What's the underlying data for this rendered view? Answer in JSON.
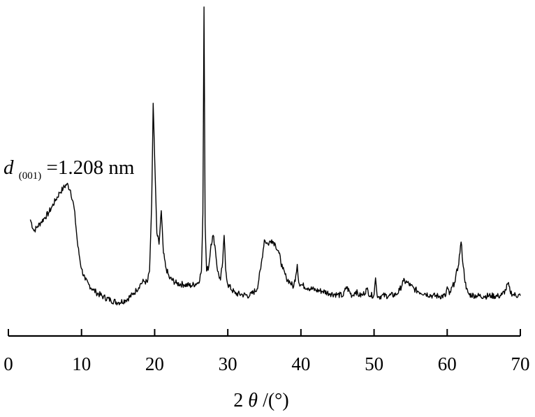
{
  "chart_data": {
    "type": "line",
    "title": "",
    "xlabel": {
      "prefix": "2",
      "symbol": "θ",
      "suffix": "/(°)"
    },
    "ylabel": "",
    "xlim": [
      0,
      70
    ],
    "x_ticks": [
      0,
      10,
      20,
      30,
      40,
      50,
      60,
      70
    ],
    "x_tick_labels": [
      "0",
      "10",
      "20",
      "30",
      "40",
      "50",
      "60",
      "70"
    ],
    "y_axis_shown": false,
    "grid": false,
    "annotation": {
      "var": "d",
      "subscript": "(001)",
      "text": "=1.208 nm"
    },
    "series": [
      {
        "color": "#000000",
        "x": [
          3.0,
          3.5,
          4.0,
          4.5,
          5.0,
          5.5,
          6.0,
          6.5,
          7.0,
          7.5,
          8.0,
          8.5,
          9.0,
          9.5,
          10.0,
          10.5,
          11.0,
          11.5,
          12.0,
          13.0,
          14.0,
          15.0,
          16.0,
          17.0,
          17.5,
          18.0,
          18.5,
          19.0,
          19.3,
          19.6,
          19.8,
          20.0,
          20.3,
          20.6,
          20.9,
          21.2,
          21.5,
          22.0,
          23.0,
          24.0,
          25.0,
          26.0,
          26.4,
          26.6,
          26.75,
          26.9,
          27.1,
          27.4,
          27.7,
          28.0,
          28.3,
          28.6,
          29.0,
          29.3,
          29.5,
          29.7,
          30.0,
          31.0,
          32.0,
          33.0,
          34.0,
          34.5,
          35.0,
          35.5,
          36.0,
          36.5,
          37.0,
          37.5,
          38.0,
          38.5,
          39.0,
          39.3,
          39.5,
          39.7,
          40.0,
          41.0,
          42.0,
          43.0,
          44.0,
          45.0,
          45.8,
          46.2,
          47.0,
          47.5,
          48.0,
          48.5,
          49.0,
          49.5,
          50.0,
          50.2,
          50.4,
          50.7,
          51.0,
          52.0,
          53.0,
          53.5,
          54.0,
          54.5,
          55.0,
          55.5,
          56.0,
          57.0,
          58.0,
          59.0,
          59.8,
          60.0,
          60.3,
          61.0,
          61.5,
          61.9,
          62.2,
          62.6,
          63.0,
          64.0,
          65.0,
          66.0,
          67.0,
          67.5,
          68.0,
          68.3,
          68.6,
          69.0,
          70.0
        ],
        "y": [
          3.7,
          3.2,
          3.4,
          3.6,
          3.8,
          4.0,
          4.3,
          4.6,
          4.9,
          5.1,
          5.3,
          5.0,
          4.2,
          2.5,
          1.5,
          1.0,
          0.8,
          0.6,
          0.45,
          0.25,
          0.1,
          0.0,
          0.1,
          0.35,
          0.55,
          0.8,
          0.95,
          0.9,
          1.4,
          4.5,
          8.9,
          6.5,
          3.1,
          2.6,
          4.1,
          2.2,
          1.6,
          1.1,
          0.85,
          0.8,
          0.75,
          0.9,
          1.4,
          4.0,
          13.2,
          3.5,
          1.4,
          1.6,
          2.6,
          3.0,
          2.4,
          1.4,
          1.0,
          1.8,
          3.0,
          1.5,
          0.8,
          0.4,
          0.35,
          0.3,
          0.6,
          1.5,
          2.8,
          2.6,
          2.8,
          2.6,
          2.2,
          1.5,
          1.1,
          0.9,
          0.7,
          1.2,
          1.7,
          0.9,
          0.8,
          0.65,
          0.55,
          0.5,
          0.4,
          0.35,
          0.3,
          0.7,
          0.3,
          0.5,
          0.3,
          0.35,
          0.6,
          0.3,
          0.35,
          1.1,
          0.35,
          0.25,
          0.3,
          0.3,
          0.35,
          0.55,
          0.95,
          0.9,
          0.75,
          0.6,
          0.5,
          0.4,
          0.3,
          0.28,
          0.3,
          0.7,
          0.35,
          0.9,
          1.6,
          2.7,
          1.6,
          0.6,
          0.35,
          0.3,
          0.28,
          0.3,
          0.28,
          0.35,
          0.55,
          0.85,
          0.5,
          0.35,
          0.3
        ]
      }
    ]
  }
}
